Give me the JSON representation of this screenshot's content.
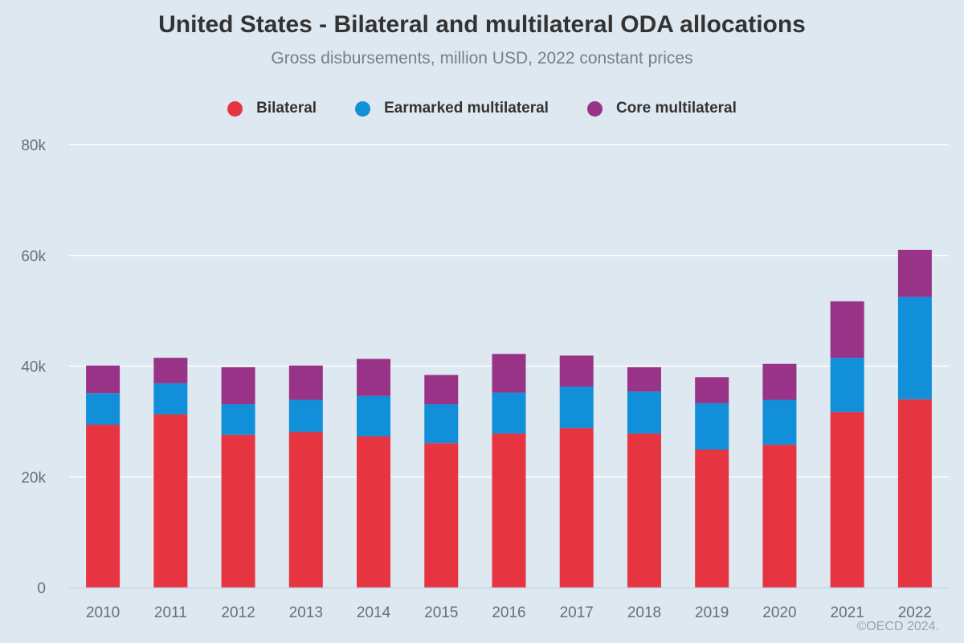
{
  "chart_data": {
    "type": "bar",
    "stacked": true,
    "title": "United States - Bilateral and multilateral ODA allocations",
    "subtitle": "Gross disbursements, million USD, 2022 constant prices",
    "xlabel": "",
    "ylabel": "",
    "ylim": [
      0,
      80000
    ],
    "yticks": [
      0,
      20000,
      40000,
      60000,
      80000
    ],
    "ytick_labels": [
      "0",
      "20k",
      "40k",
      "60k",
      "80k"
    ],
    "grid": true,
    "legend_position": "top-center",
    "categories": [
      "2010",
      "2011",
      "2012",
      "2013",
      "2014",
      "2015",
      "2016",
      "2017",
      "2018",
      "2019",
      "2020",
      "2021",
      "2022"
    ],
    "series": [
      {
        "name": "Bilateral",
        "color": "#e63540",
        "values": [
          29400,
          31300,
          27600,
          28100,
          27300,
          26100,
          27800,
          28800,
          27800,
          24900,
          25800,
          31700,
          34000
        ]
      },
      {
        "name": "Earmarked multilateral",
        "color": "#118fd9",
        "values": [
          5700,
          5600,
          5500,
          5800,
          7300,
          7000,
          7400,
          7500,
          7600,
          8400,
          8100,
          9800,
          18500
        ]
      },
      {
        "name": "Core multilateral",
        "color": "#993387",
        "values": [
          5000,
          4600,
          6700,
          6200,
          6700,
          5300,
          7000,
          5600,
          4400,
          4700,
          6500,
          10200,
          8500
        ]
      }
    ]
  },
  "footer": {
    "copyright": "©OECD 2024."
  }
}
